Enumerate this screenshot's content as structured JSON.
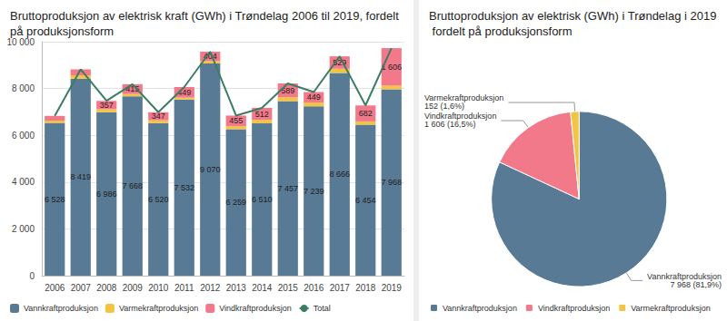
{
  "chart_data": [
    {
      "type": "bar",
      "title": "Bruttoproduksjon av elektrisk kraft (GWh) i Trøndelag 2006 til 2019, fordelt på produksjonsform",
      "categories": [
        "2006",
        "2007",
        "2008",
        "2009",
        "2010",
        "2011",
        "2012",
        "2013",
        "2014",
        "2015",
        "2016",
        "2017",
        "2018",
        "2019"
      ],
      "stacked": true,
      "data_labels": true,
      "grid": true,
      "legend": "bottom",
      "ylim": [
        0,
        10000
      ],
      "yticks": [
        {
          "value": 0,
          "label": "0"
        },
        {
          "value": 2000,
          "label": "2 000"
        },
        {
          "value": 4000,
          "label": "4 000"
        },
        {
          "value": 6000,
          "label": "6 000"
        },
        {
          "value": 8000,
          "label": "8 000"
        },
        {
          "value": 10000,
          "label": "10 000"
        }
      ],
      "series": [
        {
          "name": "Vannkraftproduksjon",
          "type": "bar",
          "color": "#587a95",
          "values": [
            6528,
            8419,
            6986,
            7668,
            6520,
            7532,
            9070,
            6259,
            6510,
            7457,
            7239,
            8666,
            6454,
            7968
          ],
          "value_labels": [
            "6 528",
            "8 419",
            "6 986",
            "7 668",
            "6 520",
            "7 532",
            "9 070",
            "6 259",
            "6 510",
            "7 457",
            "7 239",
            "8 666",
            "6 454",
            "7 968"
          ]
        },
        {
          "name": "Varmekraftproduksjon",
          "type": "bar",
          "color": "#f3c443",
          "values": [
            100,
            150,
            130,
            100,
            120,
            80,
            100,
            130,
            150,
            170,
            160,
            180,
            140,
            152
          ]
        },
        {
          "name": "Vindkraftproduksjon",
          "type": "bar",
          "color": "#f2798a",
          "values": [
            200,
            250,
            357,
            415,
            347,
            449,
            404,
            455,
            512,
            589,
            449,
            529,
            682,
            1606
          ],
          "value_labels": [
            null,
            null,
            "357",
            "415",
            "347",
            "449",
            "404",
            "455",
            "512",
            "589",
            "449",
            "529",
            "682",
            "1 606"
          ]
        },
        {
          "name": "Total",
          "type": "line",
          "color": "#3b7d64",
          "marker": "none",
          "values": [
            6828,
            8819,
            7473,
            8183,
            6987,
            8061,
            9574,
            6844,
            7172,
            8216,
            7848,
            9375,
            7276,
            9726
          ]
        }
      ]
    },
    {
      "type": "pie",
      "title": "Bruttoproduksjon av elektrisk (GWh) i Trøndelag i 2019 fordelt på produksjonsform",
      "categories": [
        "Vannkraftproduksjon",
        "Vindkraftproduksjon",
        "Varmekraftproduksjon"
      ],
      "values": [
        7968,
        1606,
        152
      ],
      "value_labels": [
        "7 968 (81,9%)",
        "1 606 (16,5%)",
        "152 (1,6%)"
      ],
      "colors": [
        "#587a95",
        "#f2798a",
        "#f3c443"
      ],
      "data_labels": true,
      "legend": "bottom"
    }
  ]
}
